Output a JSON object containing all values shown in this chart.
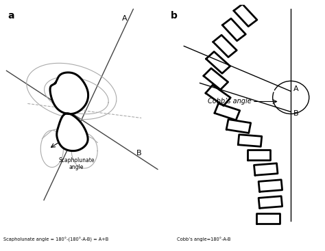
{
  "background_color": "#ffffff",
  "panel_a_label": "a",
  "panel_b_label": "b",
  "bottom_text_a": "Scapholunate angle = 180°-(180°-A-B) = A+B",
  "bottom_text_b": "Cobb’s angle=180°-A-B",
  "label_A": "A",
  "label_B": "B",
  "cobb_label": "Cobb’s angle",
  "scapholunate_label": "Scapholunate\nangle"
}
